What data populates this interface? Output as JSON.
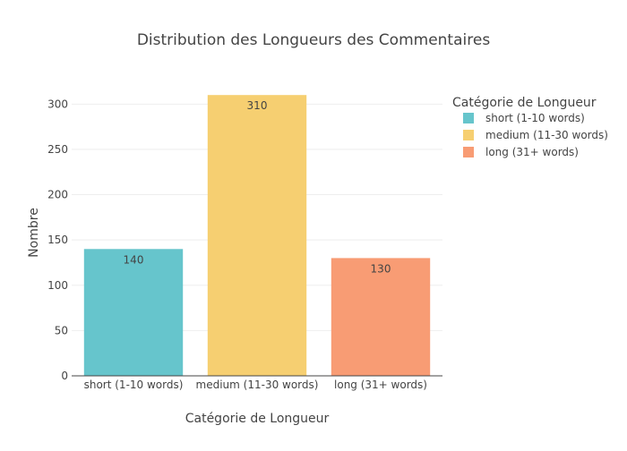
{
  "chart_data": {
    "type": "bar",
    "title": "Distribution des Longueurs des Commentaires",
    "xlabel": "Catégorie de Longueur",
    "ylabel": "Nombre",
    "categories": [
      "short (1-10 words)",
      "medium (11-30 words)",
      "long (31+ words)"
    ],
    "values": [
      140,
      310,
      130
    ],
    "colors": [
      "#66c5cc",
      "#f6cf71",
      "#f89c74"
    ],
    "ylim": [
      0,
      326
    ],
    "yticks": [
      0,
      50,
      100,
      150,
      200,
      250,
      300
    ],
    "grid": true,
    "legend": {
      "title": "Catégorie de Longueur",
      "position": "top-right",
      "items": [
        "short (1-10 words)",
        "medium (11-30 words)",
        "long (31+ words)"
      ]
    },
    "data_labels": true
  }
}
